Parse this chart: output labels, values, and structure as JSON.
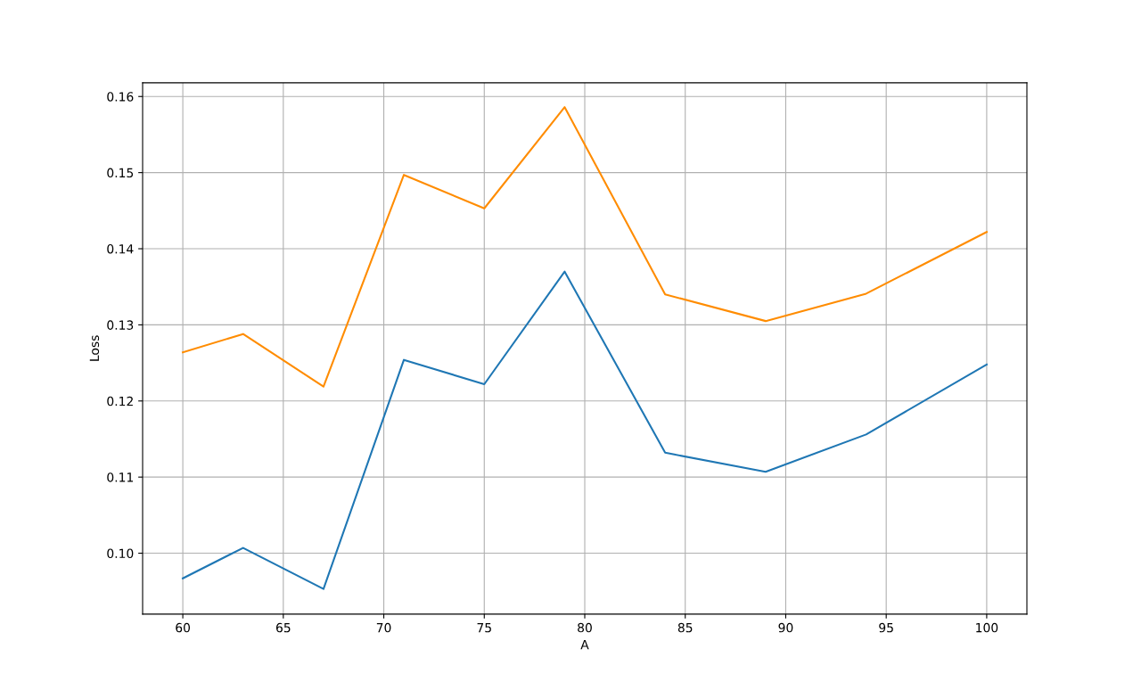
{
  "chart_data": {
    "type": "line",
    "xlabel": "A",
    "ylabel": "Loss",
    "x": [
      60,
      63,
      67,
      71,
      75,
      79,
      84,
      89,
      94,
      100
    ],
    "series": [
      {
        "color": "#1f77b4",
        "values": [
          0.0967,
          0.1007,
          0.0953,
          0.1254,
          0.1222,
          0.137,
          0.1132,
          0.1107,
          0.1156,
          0.1248
        ]
      },
      {
        "color": "#ff8c00",
        "values": [
          0.1264,
          0.1288,
          0.1219,
          0.1497,
          0.1453,
          0.1586,
          0.134,
          0.1305,
          0.1341,
          0.1422
        ]
      }
    ],
    "xlim": [
      58,
      102
    ],
    "ylim": [
      0.092,
      0.1618
    ],
    "xticks": [
      60,
      65,
      70,
      75,
      80,
      85,
      90,
      95,
      100
    ],
    "yticks": [
      {
        "value": 0.1,
        "label": "0.10"
      },
      {
        "value": 0.11,
        "label": "0.11"
      },
      {
        "value": 0.12,
        "label": "0.12"
      },
      {
        "value": 0.13,
        "label": "0.13"
      },
      {
        "value": 0.14,
        "label": "0.14"
      },
      {
        "value": 0.15,
        "label": "0.15"
      },
      {
        "value": 0.16,
        "label": "0.16"
      }
    ],
    "grid": true
  }
}
